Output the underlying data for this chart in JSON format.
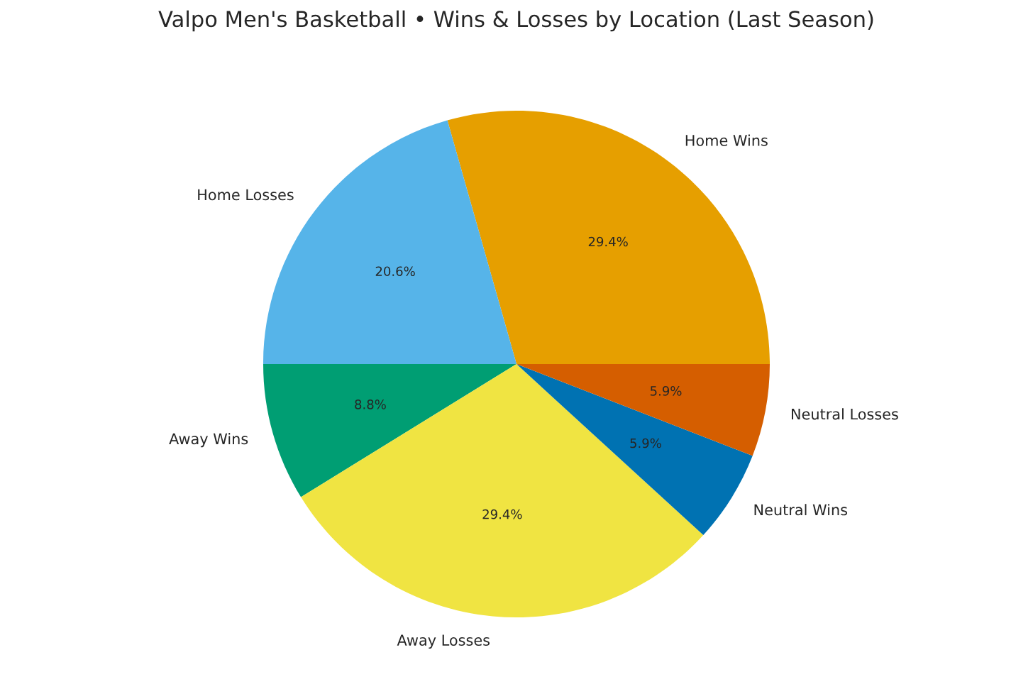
{
  "chart_data": {
    "type": "pie",
    "title": "Valpo Men's Basketball • Wins & Losses by Location (Last Season)",
    "categories": [
      "Home Wins",
      "Home Losses",
      "Away Wins",
      "Away Losses",
      "Neutral Wins",
      "Neutral Losses"
    ],
    "values": [
      29.4,
      20.6,
      8.8,
      29.4,
      5.9,
      5.9
    ],
    "value_labels": [
      "29.4%",
      "20.6%",
      "8.8%",
      "29.4%",
      "5.9%",
      "5.9%"
    ],
    "colors": [
      "#e69f00",
      "#56b4e9",
      "#009e73",
      "#f0e442",
      "#0072b2",
      "#d55e00"
    ],
    "legend": false
  }
}
